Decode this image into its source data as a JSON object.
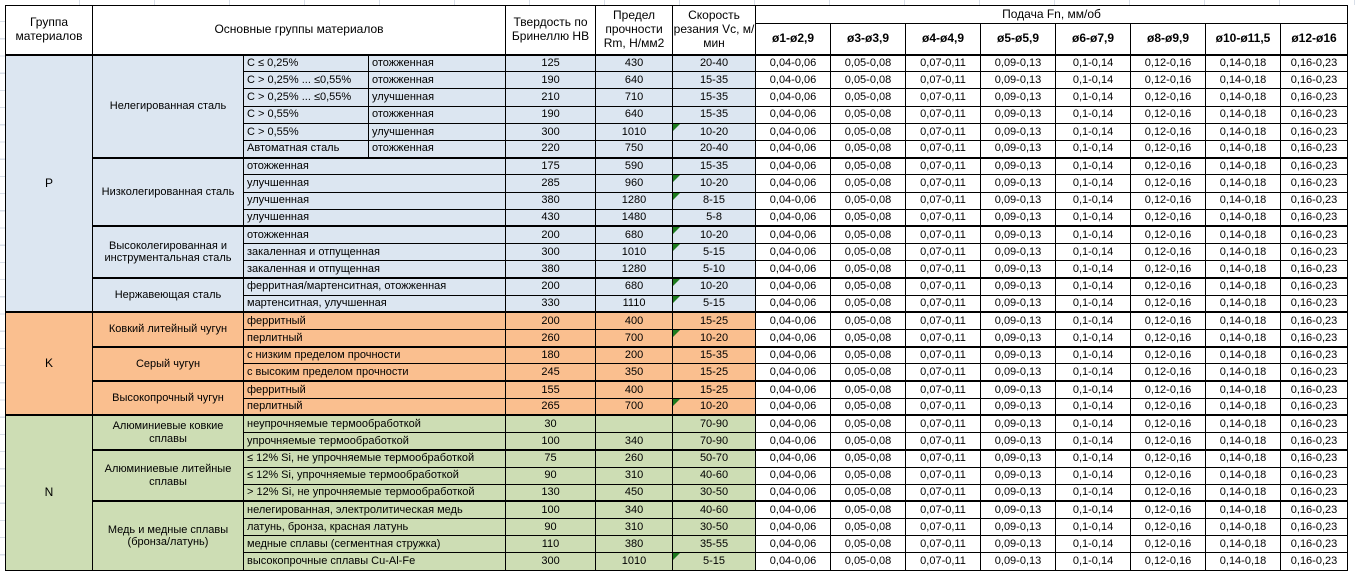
{
  "header": {
    "group_col": "Группа материалов",
    "main_col": "Основные группы материалов",
    "hardness_col": "Твердость по Бринеллю HB",
    "strength_col": "Предел прочности Rm, Н/мм2",
    "speed_col": "Скорость резания Vc, м/мин",
    "feed_title": "Подача Fn, мм/об",
    "feed_cols": [
      "ø1-ø2,9",
      "ø3-ø3,9",
      "ø4-ø4,9",
      "ø5-ø5,9",
      "ø6-ø7,9",
      "ø8-ø9,9",
      "ø10-ø11,5",
      "ø12-ø16"
    ]
  },
  "feed_values": [
    "0,04-0,06",
    "0,05-0,08",
    "0,07-0,11",
    "0,09-0,13",
    "0,1-0,14",
    "0,12-0,16",
    "0,14-0,18",
    "0,16-0,23"
  ],
  "colors": {
    "group_p": "#dce6f1",
    "group_k": "#fabf8f",
    "group_n": "#cdddb4",
    "error_flag": "#1e7b1e"
  },
  "groups": [
    {
      "code": "P",
      "color": "#dce6f1",
      "blocks": [
        {
          "name": "Нелегированная сталь",
          "rows": [
            {
              "detail": "C ≤ 0,25%",
              "state": "отожженная",
              "hb": "125",
              "rm": "430",
              "vc": "20-40"
            },
            {
              "detail": "C > 0,25% ... ≤0,55%",
              "state": "отожженная",
              "hb": "190",
              "rm": "640",
              "vc": "15-35"
            },
            {
              "detail": "C > 0,25% ... ≤0,55%",
              "state": "улучшенная",
              "hb": "210",
              "rm": "710",
              "vc": "15-35"
            },
            {
              "detail": "C > 0,55%",
              "state": "отожженная",
              "hb": "190",
              "rm": "640",
              "vc": "15-35"
            },
            {
              "detail": "C > 0,55%",
              "state": "улучшенная",
              "hb": "300",
              "rm": "1010",
              "vc": "10-20",
              "flag": true
            },
            {
              "detail": "Автоматная сталь",
              "state": "отожженная",
              "hb": "220",
              "rm": "750",
              "vc": "20-40"
            }
          ]
        },
        {
          "name": "Низколегированная сталь",
          "rows": [
            {
              "detail": "отожженная",
              "hb": "175",
              "rm": "590",
              "vc": "15-35"
            },
            {
              "detail": "улучшенная",
              "hb": "285",
              "rm": "960",
              "vc": "10-20",
              "flag": true
            },
            {
              "detail": "улучшенная",
              "hb": "380",
              "rm": "1280",
              "vc": "8-15",
              "flag": true
            },
            {
              "detail": "улучшенная",
              "hb": "430",
              "rm": "1480",
              "vc": "5-8"
            }
          ]
        },
        {
          "name": "Высоколегированная и инструментальная сталь",
          "rows": [
            {
              "detail": "отожженная",
              "hb": "200",
              "rm": "680",
              "vc": "10-20",
              "flag": true
            },
            {
              "detail": "закаленная и отпущенная",
              "hb": "300",
              "rm": "1010",
              "vc": "5-15",
              "flag": true
            },
            {
              "detail": "закаленная и отпущенная",
              "hb": "380",
              "rm": "1280",
              "vc": "5-10"
            }
          ]
        },
        {
          "name": "Нержавеющая сталь",
          "rows": [
            {
              "detail": "ферритная/мартенситная, отожженная",
              "hb": "200",
              "rm": "680",
              "vc": "10-20",
              "flag": true
            },
            {
              "detail": "мартенситная, улучшенная",
              "hb": "330",
              "rm": "1110",
              "vc": "5-15",
              "flag": true
            }
          ]
        }
      ]
    },
    {
      "code": "K",
      "color": "#fabf8f",
      "blocks": [
        {
          "name": "Ковкий литейный чугун",
          "rows": [
            {
              "detail": "ферритный",
              "hb": "200",
              "rm": "400",
              "vc": "15-25"
            },
            {
              "detail": "перлитный",
              "hb": "260",
              "rm": "700",
              "vc": "10-20",
              "flag": true
            }
          ]
        },
        {
          "name": "Серый чугун",
          "rows": [
            {
              "detail": "с низким пределом прочности",
              "hb": "180",
              "rm": "200",
              "vc": "15-35"
            },
            {
              "detail": "с высоким пределом прочности",
              "hb": "245",
              "rm": "350",
              "vc": "15-25"
            }
          ]
        },
        {
          "name": "Высокопрочный чугун",
          "rows": [
            {
              "detail": "ферритный",
              "hb": "155",
              "rm": "400",
              "vc": "15-25"
            },
            {
              "detail": "перлитный",
              "hb": "265",
              "rm": "700",
              "vc": "10-20",
              "flag": true
            }
          ]
        }
      ]
    },
    {
      "code": "N",
      "color": "#cdddb4",
      "blocks": [
        {
          "name": "Алюминиевые ковкие сплавы",
          "rows": [
            {
              "detail": "неупрочняемые термообработкой",
              "hb": "30",
              "rm": "",
              "vc": "70-90"
            },
            {
              "detail": "упрочняемые термообработкой",
              "hb": "100",
              "rm": "340",
              "vc": "70-90"
            }
          ]
        },
        {
          "name": "Алюминиевые литейные сплавы",
          "rows": [
            {
              "detail": "≤ 12% Si, не упрочняемые термообработкой",
              "hb": "75",
              "rm": "260",
              "vc": "50-70"
            },
            {
              "detail": "≤ 12% Si, упрочняемые термообработкой",
              "hb": "90",
              "rm": "310",
              "vc": "40-60"
            },
            {
              "detail": "> 12% Si, не упрочняемые термообработкой",
              "hb": "130",
              "rm": "450",
              "vc": "30-50"
            }
          ]
        },
        {
          "name": "Медь и медные сплавы (бронза/латунь)",
          "rows": [
            {
              "detail": "нелегированная, электролитическая медь",
              "hb": "100",
              "rm": "340",
              "vc": "40-60"
            },
            {
              "detail": "латунь, бронза, красная латунь",
              "hb": "90",
              "rm": "310",
              "vc": "30-50"
            },
            {
              "detail": "медные сплавы (сегментная стружка)",
              "hb": "110",
              "rm": "380",
              "vc": "35-55"
            },
            {
              "detail": "высокопрочные сплавы Cu-Al-Fe",
              "hb": "300",
              "rm": "1010",
              "vc": "5-15",
              "flag": true
            }
          ]
        }
      ]
    }
  ]
}
